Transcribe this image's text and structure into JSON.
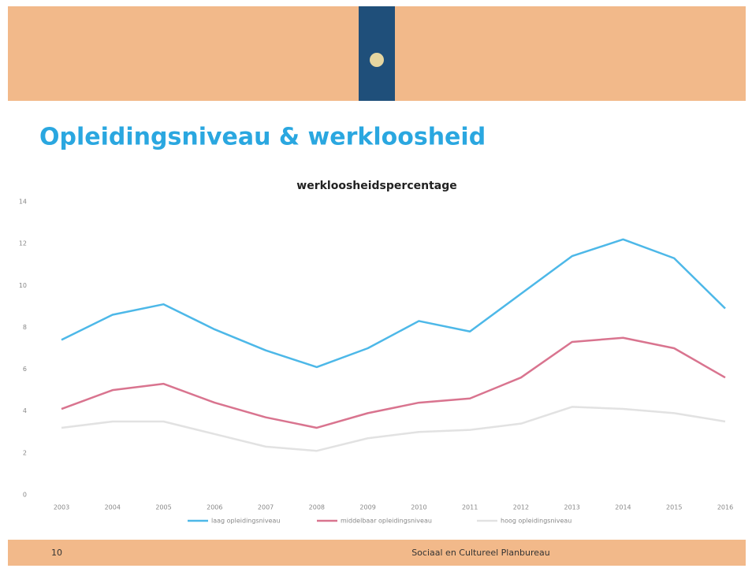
{
  "slide": {
    "title": "Opleidingsniveau & werkloosheid",
    "page_number": "10",
    "footer": "Sociaal en Cultureel Planbureau"
  },
  "chart_data": {
    "type": "line",
    "title": "werkloosheidspercentage",
    "categories": [
      "2003",
      "2004",
      "2005",
      "2006",
      "2007",
      "2008",
      "2009",
      "2010",
      "2011",
      "2012",
      "2013",
      "2014",
      "2015",
      "2016"
    ],
    "series": [
      {
        "name": "laag opleidingsniveau",
        "color": "#4db8e8",
        "values": [
          7.4,
          8.6,
          9.1,
          7.9,
          6.9,
          6.1,
          7.0,
          8.3,
          7.8,
          9.6,
          11.4,
          12.2,
          11.3,
          8.9
        ]
      },
      {
        "name": "middelbaar opleidingsniveau",
        "color": "#d9748f",
        "values": [
          4.1,
          5.0,
          5.3,
          4.4,
          3.7,
          3.2,
          3.9,
          4.4,
          4.6,
          5.6,
          7.3,
          7.5,
          7.0,
          5.6
        ]
      },
      {
        "name": "hoog opleidingsniveau",
        "color": "#e2e2e2",
        "values": [
          3.2,
          3.5,
          3.5,
          2.9,
          2.3,
          2.1,
          2.7,
          3.0,
          3.1,
          3.4,
          4.2,
          4.1,
          3.9,
          3.5
        ]
      }
    ],
    "ylim": [
      0,
      14
    ],
    "yticks": [
      0,
      2,
      4,
      6,
      8,
      10,
      12,
      14
    ],
    "grid": false,
    "legend": "bottom"
  }
}
